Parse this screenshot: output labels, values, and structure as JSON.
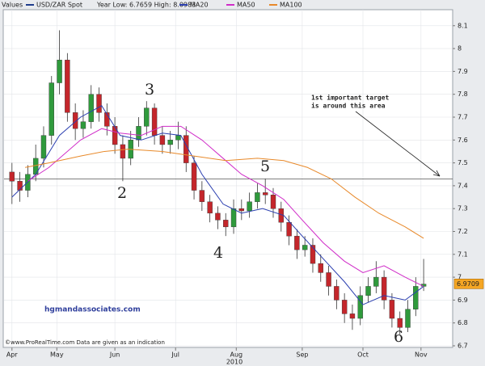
{
  "chart_data": {
    "type": "candlestick",
    "legend_label": "Values",
    "title": "USD/ZAR Spot",
    "subtitle": "Year Low: 6.7659 High: 8.0983",
    "main_color": "#1f3c8c",
    "up_color": "#2f9a3c",
    "down_color": "#c4262b",
    "candles": {
      "x": [
        0,
        3,
        6,
        9,
        12,
        15,
        18,
        21,
        24,
        27,
        30,
        33,
        36,
        39,
        42,
        45,
        48,
        51,
        54,
        57,
        60,
        63,
        66,
        69,
        72,
        75,
        78,
        81,
        84,
        87,
        90,
        93,
        96,
        99,
        102,
        105,
        108,
        111,
        114,
        117,
        120,
        123,
        126,
        129,
        132,
        135,
        138,
        141,
        144,
        147,
        150,
        153,
        156
      ],
      "open": [
        7.46,
        7.42,
        7.38,
        7.45,
        7.52,
        7.62,
        7.85,
        7.95,
        7.72,
        7.65,
        7.68,
        7.8,
        7.72,
        7.66,
        7.58,
        7.52,
        7.6,
        7.66,
        7.74,
        7.62,
        7.58,
        7.6,
        7.62,
        7.5,
        7.38,
        7.33,
        7.28,
        7.25,
        7.22,
        7.3,
        7.29,
        7.33,
        7.37,
        7.36,
        7.3,
        7.24,
        7.18,
        7.12,
        7.14,
        7.06,
        7.02,
        6.96,
        6.9,
        6.84,
        6.82,
        6.92,
        6.96,
        7.0,
        6.9,
        6.82,
        6.78,
        6.86,
        6.96
      ],
      "high": [
        7.5,
        7.46,
        7.49,
        7.58,
        7.66,
        7.88,
        8.08,
        7.98,
        7.76,
        7.73,
        7.84,
        7.83,
        7.76,
        7.7,
        7.62,
        7.64,
        7.7,
        7.77,
        7.76,
        7.66,
        7.64,
        7.68,
        7.66,
        7.53,
        7.42,
        7.36,
        7.31,
        7.28,
        7.34,
        7.34,
        7.37,
        7.41,
        7.43,
        7.39,
        7.33,
        7.27,
        7.21,
        7.18,
        7.17,
        7.1,
        7.05,
        6.99,
        6.93,
        6.88,
        6.96,
        7.0,
        7.07,
        7.03,
        6.93,
        6.85,
        6.9,
        7.0,
        7.08
      ],
      "low": [
        7.32,
        7.33,
        7.35,
        7.42,
        7.48,
        7.58,
        7.8,
        7.68,
        7.6,
        7.61,
        7.65,
        7.68,
        7.62,
        7.54,
        7.42,
        7.49,
        7.57,
        7.62,
        7.58,
        7.54,
        7.54,
        7.56,
        7.46,
        7.34,
        7.29,
        7.24,
        7.21,
        7.18,
        7.19,
        7.25,
        7.26,
        7.3,
        7.32,
        7.26,
        7.2,
        7.14,
        7.08,
        7.09,
        7.02,
        6.98,
        6.92,
        6.86,
        6.8,
        6.77,
        6.79,
        6.89,
        6.93,
        6.86,
        6.78,
        6.75,
        6.76,
        6.83,
        6.94
      ],
      "close": [
        7.42,
        7.38,
        7.45,
        7.52,
        7.62,
        7.85,
        7.95,
        7.72,
        7.65,
        7.68,
        7.8,
        7.72,
        7.66,
        7.58,
        7.52,
        7.6,
        7.66,
        7.74,
        7.62,
        7.58,
        7.6,
        7.62,
        7.5,
        7.38,
        7.33,
        7.28,
        7.25,
        7.22,
        7.3,
        7.29,
        7.33,
        7.37,
        7.36,
        7.3,
        7.24,
        7.18,
        7.12,
        7.14,
        7.06,
        7.02,
        6.96,
        6.9,
        6.84,
        6.82,
        6.92,
        6.96,
        7.0,
        6.9,
        6.82,
        6.78,
        6.86,
        6.96,
        6.97
      ]
    },
    "series": [
      {
        "name": "MA20",
        "color": "#2b3fb0",
        "x": [
          0,
          9,
          18,
          26,
          34,
          41,
          49,
          57,
          64,
          72,
          80,
          87,
          95,
          103,
          110,
          118,
          126,
          133,
          141,
          149,
          156
        ],
        "values": [
          7.35,
          7.45,
          7.62,
          7.7,
          7.75,
          7.62,
          7.6,
          7.63,
          7.62,
          7.45,
          7.32,
          7.28,
          7.3,
          7.27,
          7.18,
          7.08,
          6.98,
          6.88,
          6.92,
          6.9,
          6.96
        ]
      },
      {
        "name": "MA50",
        "color": "#d02cc8",
        "x": [
          6,
          14,
          26,
          34,
          41,
          49,
          57,
          64,
          72,
          80,
          87,
          95,
          103,
          110,
          118,
          126,
          133,
          141,
          149,
          156
        ],
        "values": [
          7.42,
          7.48,
          7.6,
          7.65,
          7.63,
          7.62,
          7.66,
          7.66,
          7.6,
          7.52,
          7.45,
          7.4,
          7.34,
          7.25,
          7.15,
          7.07,
          7.02,
          7.05,
          7.0,
          6.96
        ]
      },
      {
        "name": "MA100",
        "color": "#e8892a",
        "x": [
          5,
          14,
          26,
          35,
          44,
          57,
          69,
          81,
          93,
          103,
          112,
          121,
          130,
          139,
          149,
          156
        ],
        "values": [
          7.48,
          7.5,
          7.53,
          7.55,
          7.56,
          7.55,
          7.53,
          7.51,
          7.52,
          7.51,
          7.48,
          7.43,
          7.35,
          7.28,
          7.22,
          7.17
        ]
      }
    ],
    "hline": 7.43,
    "last_price": 6.9709,
    "xlim": [
      -3,
      167
    ],
    "xticks": [
      {
        "value": 0,
        "label": "Apr"
      },
      {
        "value": 17,
        "label": "May"
      },
      {
        "value": 39,
        "label": "Jun"
      },
      {
        "value": 62,
        "label": "Jul"
      },
      {
        "value": 85,
        "label": "Aug"
      },
      {
        "value": 110,
        "label": "Sep"
      },
      {
        "value": 133,
        "label": "Oct"
      },
      {
        "value": 155,
        "label": "Nov"
      }
    ],
    "xlabel": "2010",
    "ylim": [
      6.7,
      8.177
    ],
    "yticks": [
      6.7,
      6.8,
      6.9,
      7,
      7.1,
      7.2,
      7.3,
      7.4,
      7.5,
      7.6,
      7.7,
      7.8,
      7.9,
      8,
      8.1
    ],
    "grid": true,
    "annotations": [
      "1st important target",
      "is around this area",
      "2",
      "3",
      "4",
      "5",
      "6"
    ],
    "watermark": "hgmandassociates.com",
    "source": "©www.ProRealTime.com Data are given as an indication"
  }
}
